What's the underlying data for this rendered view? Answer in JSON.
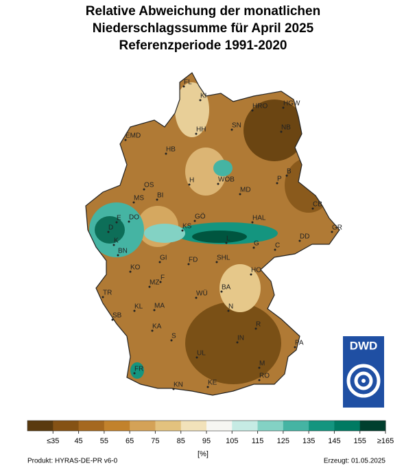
{
  "title": [
    "Relative Abweichung der monatlichen",
    "Niederschlagssumme für April 2025",
    "Referenzperiode 1991-2020"
  ],
  "cities": [
    "FL",
    "KI",
    "HRO",
    "HGW",
    "HH",
    "SN",
    "NB",
    "EMD",
    "HB",
    "B",
    "P",
    "H",
    "WOB",
    "OS",
    "MD",
    "BI",
    "MS",
    "CB",
    "DO",
    "E",
    "GÖ",
    "HAL",
    "D",
    "GR",
    "KS",
    "L",
    "DD",
    "K",
    "G",
    "C",
    "BN",
    "GI",
    "FD",
    "SHL",
    "KO",
    "HO",
    "F",
    "MZ",
    "BA",
    "WÜ",
    "TR",
    "KL",
    "MA",
    "N",
    "SB",
    "KA",
    "R",
    "S",
    "PA",
    "IN",
    "UL",
    "M",
    "FR",
    "RO",
    "KN",
    "KE"
  ],
  "legend": {
    "colors": [
      "#5a3a0e",
      "#855214",
      "#a5681f",
      "#c2822c",
      "#d4a257",
      "#e3c27e",
      "#f2e2ba",
      "#f6f6f2",
      "#c6ebe4",
      "#83d2c4",
      "#45b4a3",
      "#14957f",
      "#007a62",
      "#003f2e"
    ],
    "ticks": [
      {
        "value": 35,
        "label": "≤35"
      },
      45,
      55,
      65,
      75,
      85,
      95,
      105,
      115,
      125,
      135,
      145,
      155,
      {
        "value": 165,
        "label": "≥165"
      }
    ],
    "unit": "[%]"
  },
  "logo": "DWD",
  "footer": {
    "product": "Produkt: HYRAS-DE-PR v6-0",
    "created": "Erzeugt: 01.05.2025"
  }
}
